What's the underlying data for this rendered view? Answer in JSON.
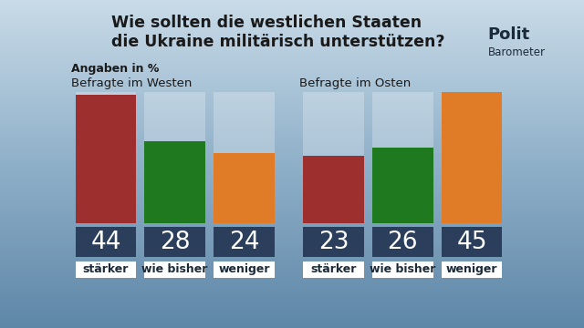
{
  "title": "Wie sollten die westlichen Staaten\ndie Ukraine militärisch unterstützen?",
  "subtitle": "Angaben in %",
  "logo": [
    "Polit",
    "Barometer"
  ],
  "chart_data": [
    {
      "type": "bar",
      "title": "Befragte im Westen",
      "categories": [
        "stärker",
        "wie bisher",
        "weniger"
      ],
      "values": [
        44,
        28,
        24
      ],
      "colors": [
        "#9e2f2f",
        "#1f7a1f",
        "#e07c28"
      ],
      "ylim": [
        0,
        45
      ],
      "data_labels": true,
      "tick_labels": false
    },
    {
      "type": "bar",
      "title": "Befragte im Osten",
      "categories": [
        "stärker",
        "wie bisher",
        "weniger"
      ],
      "values": [
        23,
        26,
        45
      ],
      "colors": [
        "#9e2f2f",
        "#1f7a1f",
        "#e07c28"
      ],
      "ylim": [
        0,
        45
      ],
      "data_labels": true,
      "tick_labels": false
    }
  ]
}
